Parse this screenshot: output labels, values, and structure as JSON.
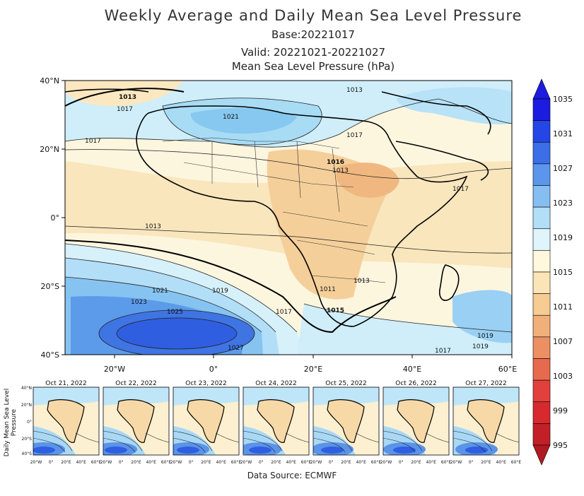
{
  "title": "Weekly Average and Daily Mean Sea Level Pressure",
  "base": "Base:20221017",
  "valid": "Valid: 20221021-20221027",
  "subtitle": "Mean Sea Level Pressure (hPa)",
  "source": "Data Source: ECMWF",
  "main_map": {
    "lat_labels": [
      "40°N",
      "20°N",
      "0°",
      "20°S",
      "40°S"
    ],
    "lon_labels": [
      "20°W",
      "0°",
      "20°E",
      "40°E",
      "60°E"
    ],
    "contour_labels": [
      "1013",
      "1017",
      "1021",
      "1017",
      "1016",
      "1013",
      "1013",
      "1021",
      "1019",
      "1023",
      "1025",
      "1027",
      "1017",
      "1015",
      "1017",
      "1019",
      "1013",
      "1017",
      "1011",
      "1013",
      "1017",
      "1019"
    ]
  },
  "colorbar": {
    "levels": [
      "1035",
      "1031",
      "1027",
      "1023",
      "1019",
      "1015",
      "1011",
      "1007",
      "1003",
      "999",
      "995"
    ],
    "colors": [
      "#1c1ce0",
      "#2546e6",
      "#3c6ee8",
      "#5c96ec",
      "#86bef2",
      "#b3def7",
      "#dff4fb",
      "#fff8dc",
      "#fbe5b6",
      "#f6cc92",
      "#f1b07a",
      "#ec8f62",
      "#e76a4e",
      "#e2403c",
      "#d62a2f",
      "#c21f27"
    ]
  },
  "daily_maps": {
    "labels": [
      "Oct 21, 2022",
      "Oct 22, 2022",
      "Oct 23, 2022",
      "Oct 24, 2022",
      "Oct 25, 2022",
      "Oct 26, 2022",
      "Oct 27, 2022"
    ],
    "ylabel": "Daily Mean Sea Level Pressure",
    "lat_labels": [
      "40°N",
      "20°N",
      "0°",
      "20°S",
      "40°S"
    ],
    "lon_labels": [
      "20°W",
      "0°",
      "20°E",
      "40°E",
      "60°E"
    ]
  }
}
